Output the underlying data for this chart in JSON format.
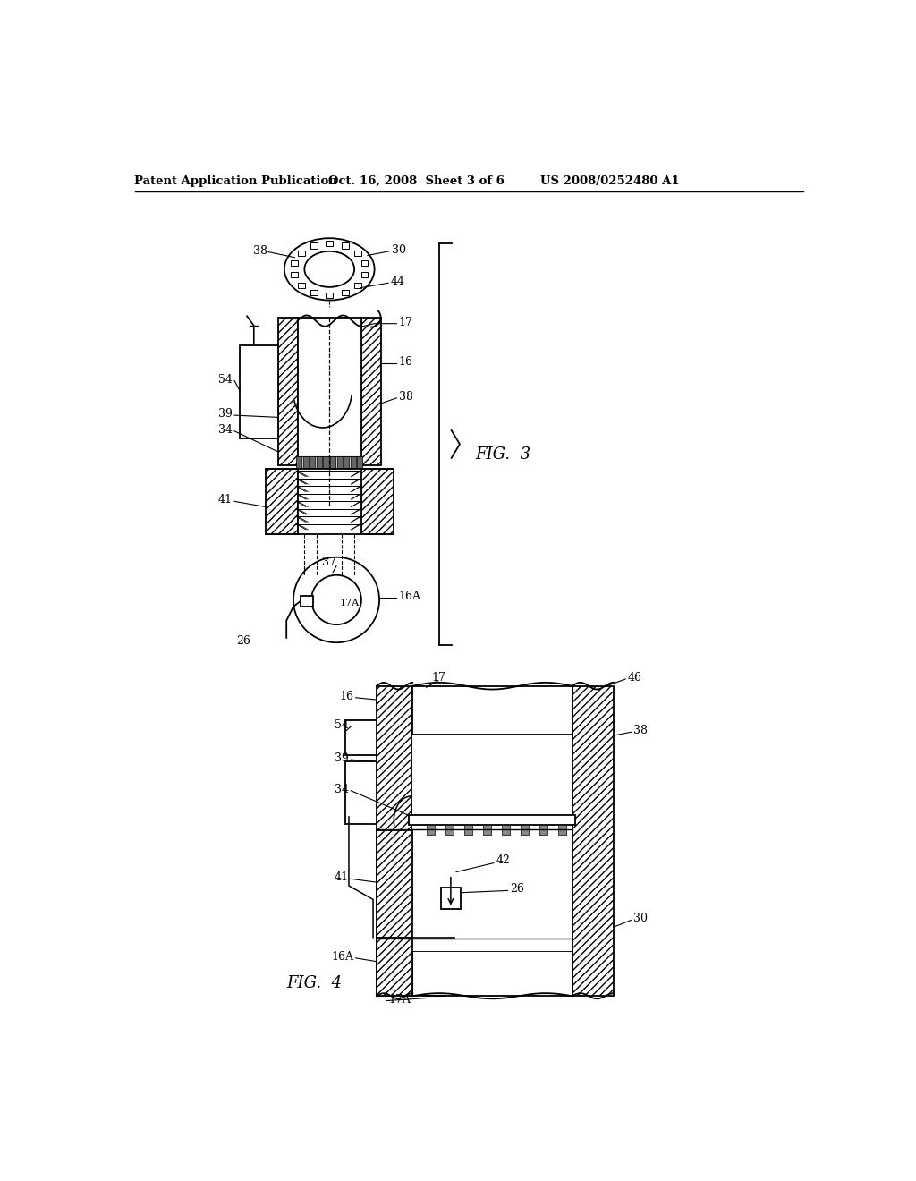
{
  "background_color": "#ffffff",
  "header_left": "Patent Application Publication",
  "header_center": "Oct. 16, 2008  Sheet 3 of 6",
  "header_right": "US 2008/0252480 A1",
  "fig3_label": "FIG.  3",
  "fig4_label": "FIG.  4",
  "line_color": "#000000",
  "fig_width": 10.24,
  "fig_height": 13.2
}
